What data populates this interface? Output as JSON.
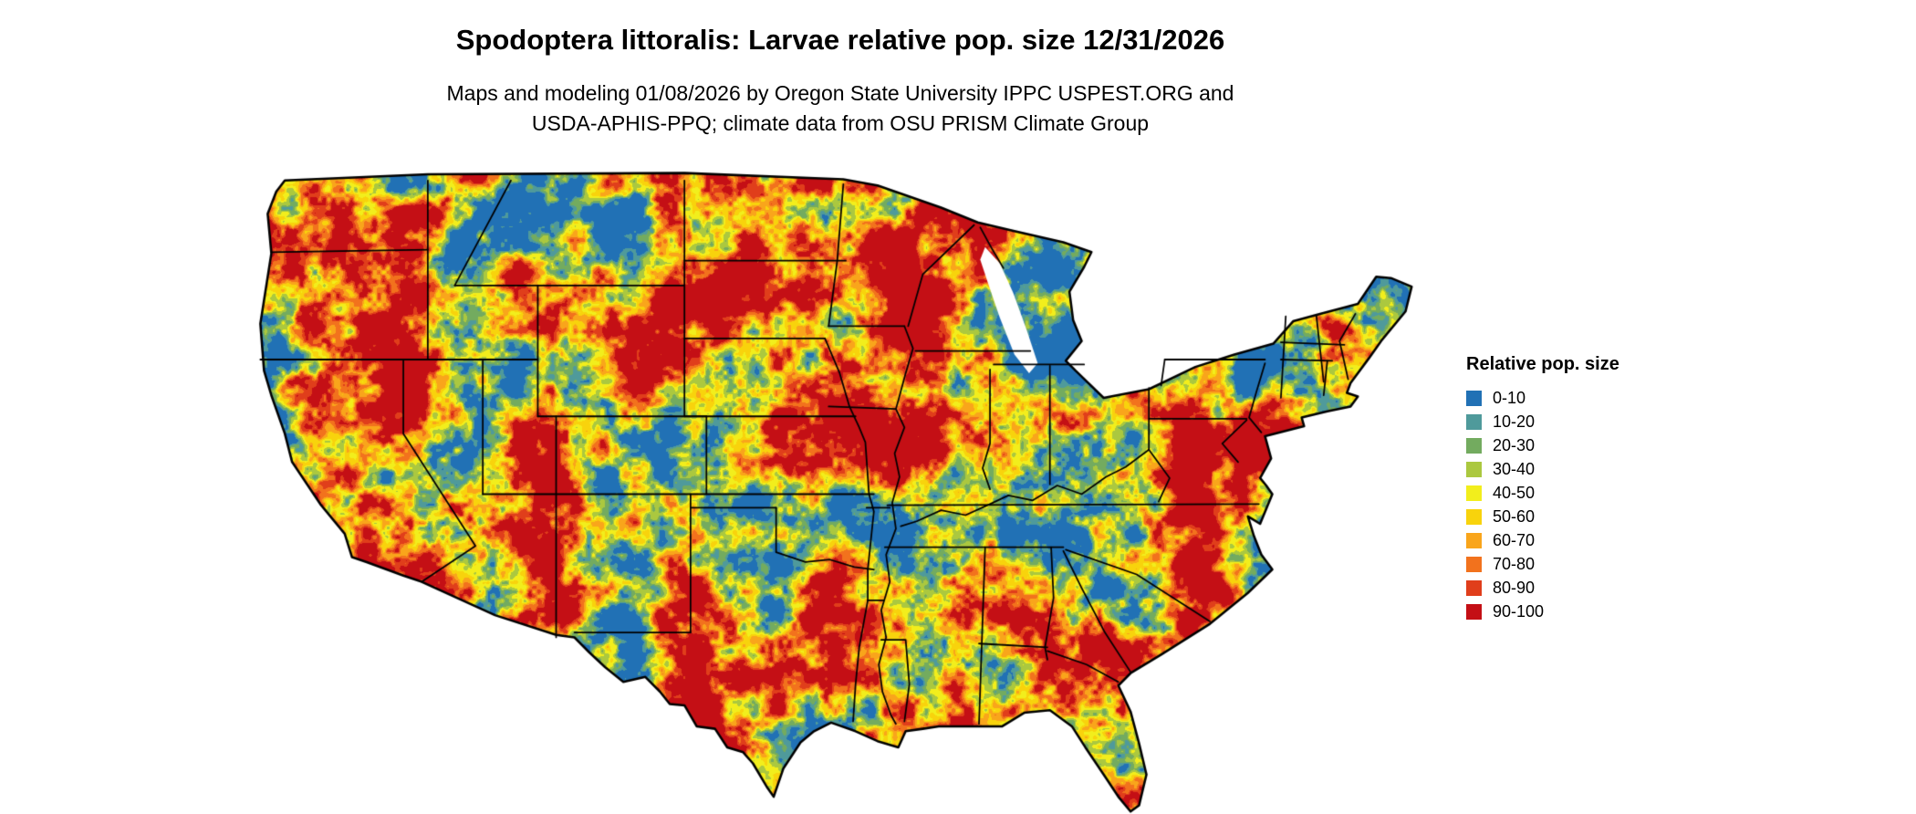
{
  "header": {
    "title": "Spodoptera littoralis: Larvae relative pop. size 12/31/2026",
    "subtitle_line1": "Maps and modeling 01/08/2026 by Oregon State University IPPC USPEST.ORG and",
    "subtitle_line2": "USDA-APHIS-PPQ; climate data from OSU PRISM Climate Group"
  },
  "map": {
    "region": "Continental United States",
    "layer": "Larvae relative population size classified raster"
  },
  "legend": {
    "title": "Relative pop. size",
    "items": [
      {
        "label": "0-10",
        "color": "#2171b5"
      },
      {
        "label": "10-20",
        "color": "#4f9a9b"
      },
      {
        "label": "20-30",
        "color": "#73ab5f"
      },
      {
        "label": "30-40",
        "color": "#abc83f"
      },
      {
        "label": "40-50",
        "color": "#f2ee1c"
      },
      {
        "label": "50-60",
        "color": "#f8d30c"
      },
      {
        "label": "60-70",
        "color": "#f9a51b"
      },
      {
        "label": "70-80",
        "color": "#f2721d"
      },
      {
        "label": "80-90",
        "color": "#e03e1b"
      },
      {
        "label": "90-100",
        "color": "#c40f15"
      }
    ]
  }
}
